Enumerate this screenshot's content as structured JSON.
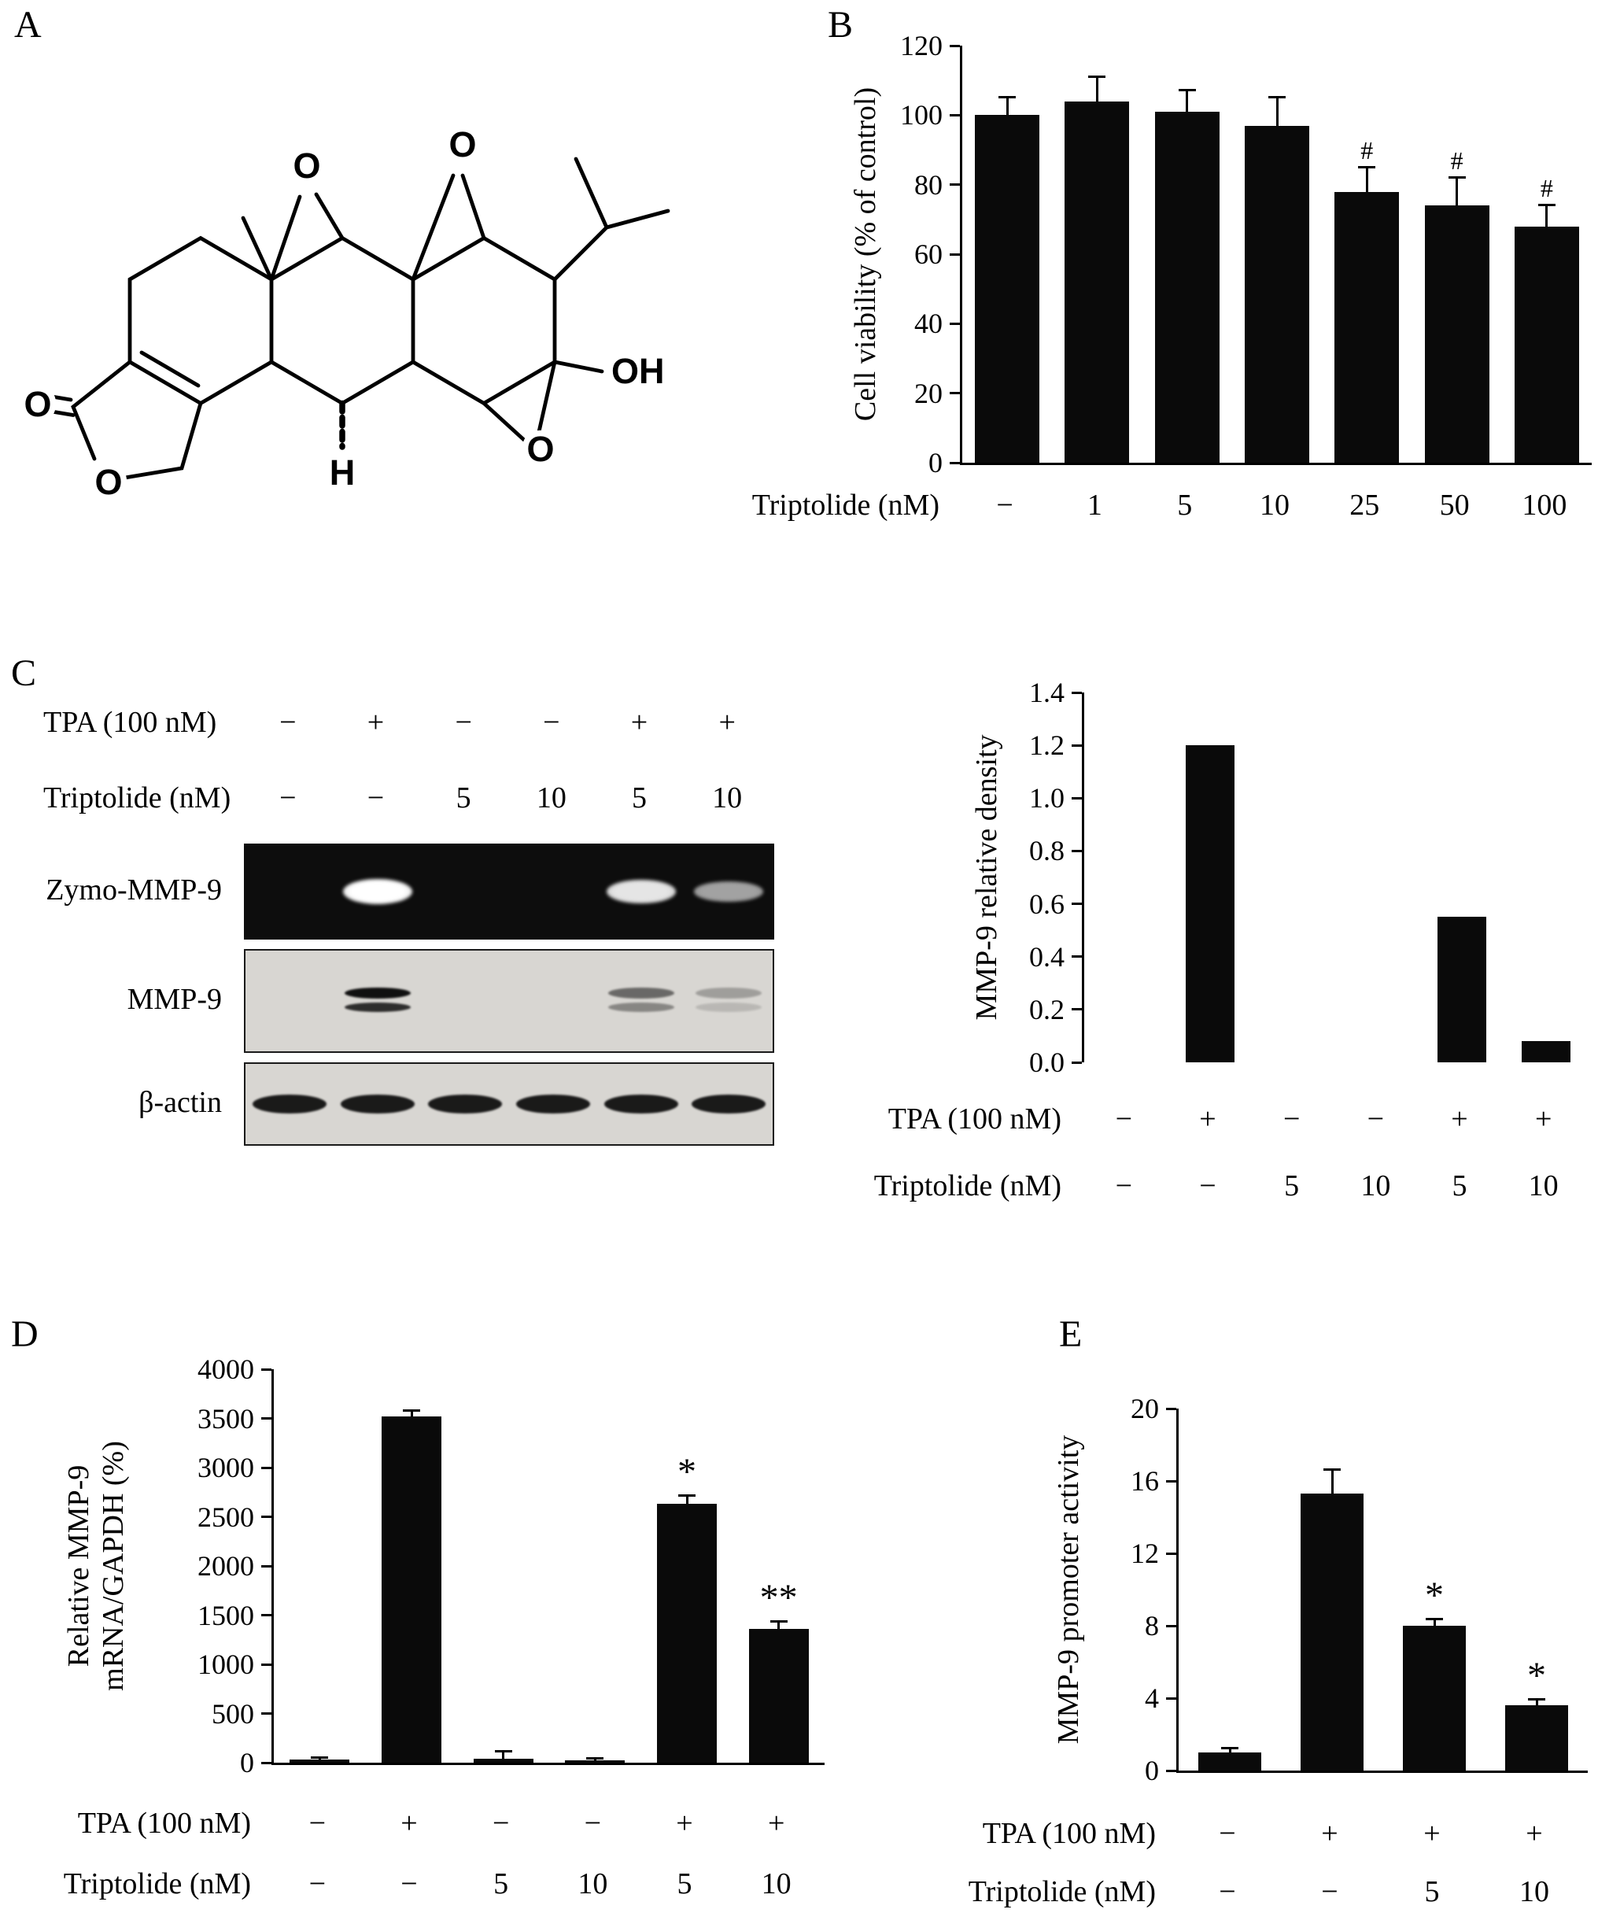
{
  "panels": {
    "A": "A",
    "B": "B",
    "C": "C",
    "D": "D",
    "E": "E"
  },
  "panelA": {
    "atom_labels": [
      "O",
      "O",
      "O",
      "O",
      "OH",
      "O",
      "H"
    ]
  },
  "panelC": {
    "header_rows": [
      {
        "label": "TPA (100 nM)",
        "values": [
          "−",
          "+",
          "−",
          "−",
          "+",
          "+"
        ]
      },
      {
        "label": "Triptolide (nM)",
        "values": [
          "−",
          "−",
          "5",
          "10",
          "5",
          "10"
        ]
      }
    ],
    "blots": [
      {
        "label": "Zymo-MMP-9",
        "type": "zymo",
        "bands": [
          0,
          1,
          0,
          0,
          0.85,
          0.45
        ]
      },
      {
        "label": "MMP-9",
        "type": "double",
        "bands": [
          0,
          1,
          0,
          0,
          0.55,
          0.28
        ]
      },
      {
        "label": "β-actin",
        "type": "single",
        "bands": [
          1,
          1,
          1,
          1,
          1,
          1
        ]
      }
    ]
  },
  "chart_data": [
    {
      "panel": "B",
      "type": "bar",
      "title": "",
      "ylabel": "Cell viability (% of control)",
      "ylim": [
        0,
        120
      ],
      "ytick_values": [
        0,
        20,
        40,
        60,
        80,
        100,
        120
      ],
      "ytick_labels": [
        "0",
        "20",
        "40",
        "60",
        "80",
        "100",
        "120"
      ],
      "values": [
        100,
        104,
        101,
        97,
        78,
        74,
        68
      ],
      "errors": [
        5,
        7,
        6,
        8,
        7,
        8,
        6
      ],
      "sig": [
        "",
        "",
        "",
        "",
        "#",
        "#",
        "#"
      ],
      "xrows": [
        {
          "label": "Triptolide (nM)",
          "values": [
            "−",
            "1",
            "5",
            "10",
            "25",
            "50",
            "100"
          ]
        }
      ],
      "bottom_axis": true,
      "grid": false,
      "legend": false
    },
    {
      "panel": "C",
      "type": "bar",
      "title": "",
      "ylabel": "MMP-9 relative density",
      "ylim": [
        0,
        1.4
      ],
      "ytick_values": [
        0,
        0.2,
        0.4,
        0.6,
        0.8,
        1.0,
        1.2,
        1.4
      ],
      "ytick_labels": [
        "0.0",
        "0.2",
        "0.4",
        "0.6",
        "0.8",
        "1.0",
        "1.2",
        "1.4"
      ],
      "values": [
        0,
        1.2,
        0,
        0,
        0.55,
        0.08
      ],
      "errors": [
        0,
        0,
        0,
        0,
        0,
        0
      ],
      "sig": [
        "",
        "",
        "",
        "",
        "",
        ""
      ],
      "xrows": [
        {
          "label": "TPA (100 nM)",
          "values": [
            "−",
            "+",
            "−",
            "−",
            "+",
            "+"
          ]
        },
        {
          "label": "Triptolide (nM)",
          "values": [
            "−",
            "−",
            "5",
            "10",
            "5",
            "10"
          ]
        }
      ],
      "bottom_axis": false,
      "grid": false,
      "legend": false
    },
    {
      "panel": "D",
      "type": "bar",
      "title": "",
      "ylabel_lines": [
        "Relative MMP-9",
        "mRNA/GAPDH (%)"
      ],
      "ylim": [
        0,
        4000
      ],
      "ytick_values": [
        0,
        500,
        1000,
        1500,
        2000,
        2500,
        3000,
        3500,
        4000
      ],
      "ytick_labels": [
        "0",
        "500",
        "1000",
        "1500",
        "2000",
        "2500",
        "3000",
        "3500",
        "4000"
      ],
      "values": [
        30,
        3520,
        40,
        25,
        2630,
        1360
      ],
      "errors": [
        15,
        60,
        70,
        15,
        80,
        70
      ],
      "sig": [
        "",
        "",
        "",
        "",
        "*",
        "**"
      ],
      "xrows": [
        {
          "label": "TPA (100 nM)",
          "values": [
            "−",
            "+",
            "−",
            "−",
            "+",
            "+"
          ]
        },
        {
          "label": "Triptolide (nM)",
          "values": [
            "−",
            "−",
            "5",
            "10",
            "5",
            "10"
          ]
        }
      ],
      "bottom_axis": true,
      "grid": false,
      "legend": false
    },
    {
      "panel": "E",
      "type": "bar",
      "title": "",
      "ylabel": "MMP-9 promoter activity",
      "ylim": [
        0,
        20
      ],
      "ytick_values": [
        0,
        4,
        8,
        12,
        16,
        20
      ],
      "ytick_labels": [
        "0",
        "4",
        "8",
        "12",
        "16",
        "20"
      ],
      "values": [
        1.0,
        15.3,
        8.0,
        3.6
      ],
      "errors": [
        0.2,
        1.3,
        0.35,
        0.3
      ],
      "sig": [
        "",
        "",
        "*",
        "*"
      ],
      "xrows": [
        {
          "label": "TPA (100 nM)",
          "values": [
            "−",
            "+",
            "+",
            "+"
          ]
        },
        {
          "label": "Triptolide (nM)",
          "values": [
            "−",
            "−",
            "5",
            "10"
          ]
        }
      ],
      "bottom_axis": true,
      "grid": false,
      "legend": false
    }
  ]
}
